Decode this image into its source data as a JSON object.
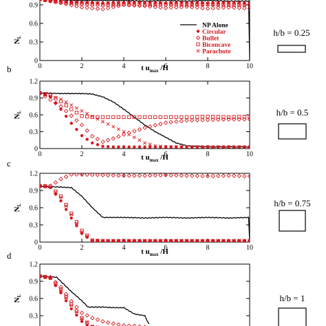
{
  "chart_data": [
    {
      "panel": "a",
      "panel_label": "",
      "type": "line",
      "xlabel": "t u_max /H",
      "ylabel": "N_L",
      "xlim": [
        0,
        10
      ],
      "ylim": [
        0,
        1.2
      ],
      "xticks": [
        "0",
        "2",
        "4",
        "6",
        "8",
        "10"
      ],
      "yticks": [
        "0",
        "0.3",
        "0.6",
        "0.9"
      ],
      "shape_label": "h/b = 0.25",
      "legend_position": "right",
      "series": [
        {
          "name": "NP Alone",
          "style": "line",
          "x": [
            0,
            1,
            2,
            3,
            4,
            5,
            6,
            7,
            8,
            9,
            10
          ],
          "y": [
            0.99,
            0.98,
            0.97,
            0.97,
            0.97,
            0.96,
            0.97,
            0.96,
            0.97,
            0.96,
            0.96
          ]
        },
        {
          "name": "Circular",
          "style": "filled-circle",
          "x": [
            0,
            1,
            2,
            3,
            4,
            5,
            6,
            7,
            8,
            9,
            10
          ],
          "y": [
            0.99,
            0.95,
            0.94,
            0.93,
            0.94,
            0.94,
            0.93,
            0.94,
            0.93,
            0.94,
            0.93
          ]
        },
        {
          "name": "Bullet",
          "style": "open-diamond",
          "x": [
            0,
            1,
            2,
            3,
            4,
            5,
            6,
            7,
            8,
            9,
            10
          ],
          "y": [
            0.99,
            0.93,
            0.86,
            0.83,
            0.9,
            0.88,
            0.85,
            0.87,
            0.84,
            0.86,
            0.84
          ]
        },
        {
          "name": "Biconcave",
          "style": "open-square",
          "x": [
            0,
            1,
            2,
            3,
            4,
            5,
            6,
            7,
            8,
            9,
            10
          ],
          "y": [
            0.99,
            0.94,
            0.92,
            0.9,
            0.91,
            0.9,
            0.91,
            0.9,
            0.91,
            0.9,
            0.9
          ]
        },
        {
          "name": "Parachute",
          "style": "cross",
          "x": [
            0,
            1,
            2,
            3,
            4,
            5,
            6,
            7,
            8,
            9,
            10
          ],
          "y": [
            0.99,
            0.95,
            0.93,
            0.91,
            0.92,
            0.91,
            0.92,
            0.91,
            0.9,
            0.91,
            0.9
          ]
        }
      ]
    },
    {
      "panel": "b",
      "panel_label": "b",
      "type": "line",
      "xlabel": "t u_max /H",
      "ylabel": "N_L",
      "xlim": [
        0,
        10
      ],
      "ylim": [
        0,
        1.2
      ],
      "xticks": [
        "0",
        "2",
        "4",
        "6",
        "8",
        "10"
      ],
      "yticks": [
        "0",
        "0.3",
        "0.6",
        "0.9",
        "1.2"
      ],
      "shape_label": "h/b = 0.5",
      "series": [
        {
          "name": "NP Alone",
          "style": "line",
          "x": [
            0,
            1,
            2,
            2.5,
            3,
            3.5,
            4,
            4.5,
            5,
            5.5,
            6,
            6.5,
            7,
            8,
            9,
            10
          ],
          "y": [
            0.99,
            0.98,
            0.98,
            0.97,
            0.92,
            0.83,
            0.7,
            0.56,
            0.42,
            0.3,
            0.2,
            0.1,
            0.05,
            0.03,
            0.03,
            0.03
          ]
        },
        {
          "name": "Circular",
          "style": "filled-circle",
          "x": [
            0,
            0.5,
            1,
            1.5,
            2,
            2.5,
            3,
            3.5,
            4,
            5,
            6,
            7,
            8,
            9,
            10
          ],
          "y": [
            0.99,
            0.92,
            0.7,
            0.45,
            0.23,
            0.1,
            0.04,
            0.03,
            0.03,
            0.03,
            0.03,
            0.03,
            0.03,
            0.03,
            0.03
          ]
        },
        {
          "name": "Bullet",
          "style": "open-diamond",
          "x": [
            0,
            1,
            2,
            2.5,
            3,
            3.5,
            4,
            5,
            6,
            7,
            8,
            9,
            10
          ],
          "y": [
            0.99,
            0.75,
            0.42,
            0.22,
            0.12,
            0.18,
            0.25,
            0.37,
            0.46,
            0.5,
            0.51,
            0.52,
            0.52
          ]
        },
        {
          "name": "Biconcave",
          "style": "open-square",
          "x": [
            0,
            0.5,
            1,
            1.5,
            2,
            2.5,
            3,
            4,
            5,
            6,
            7,
            8,
            9,
            10
          ],
          "y": [
            0.99,
            0.95,
            0.84,
            0.7,
            0.58,
            0.56,
            0.56,
            0.56,
            0.56,
            0.56,
            0.56,
            0.57,
            0.56,
            0.57
          ]
        },
        {
          "name": "Parachute",
          "style": "cross",
          "x": [
            0,
            1,
            2,
            3,
            4,
            4.5,
            5,
            5.5,
            6,
            7,
            8,
            9,
            10
          ],
          "y": [
            0.99,
            0.88,
            0.67,
            0.48,
            0.3,
            0.2,
            0.1,
            0.05,
            0.03,
            0.03,
            0.03,
            0.03,
            0.03
          ]
        }
      ]
    },
    {
      "panel": "c",
      "panel_label": "c",
      "type": "line",
      "xlabel": "t u_max /H",
      "ylabel": "N_L",
      "xlim": [
        0,
        10
      ],
      "ylim": [
        0,
        1.2
      ],
      "xticks": [
        "0",
        "2",
        "4",
        "6",
        "8",
        "10"
      ],
      "yticks": [
        "0",
        "0.3",
        "0.6",
        "0.9",
        "1.2"
      ],
      "shape_label": "h/b = 0.75",
      "series": [
        {
          "name": "NP Alone",
          "style": "line",
          "x": [
            0,
            1,
            1.5,
            2,
            2.5,
            3,
            3.3,
            4,
            5,
            6,
            7,
            8,
            9,
            10
          ],
          "y": [
            0.97,
            0.96,
            0.95,
            0.8,
            0.6,
            0.43,
            0.43,
            0.43,
            0.42,
            0.43,
            0.42,
            0.43,
            0.42,
            0.43
          ]
        },
        {
          "name": "Circular",
          "style": "filled-circle",
          "x": [
            0,
            0.5,
            1,
            1.5,
            2,
            2.5,
            3,
            4,
            5,
            6,
            7,
            8,
            9,
            10
          ],
          "y": [
            0.98,
            0.95,
            0.72,
            0.42,
            0.15,
            0.02,
            0.02,
            0.02,
            0.02,
            0.02,
            0.02,
            0.02,
            0.02,
            0.02
          ]
        },
        {
          "name": "Bullet",
          "style": "open-diamond",
          "x": [
            0,
            0.5,
            1,
            1.5,
            2,
            3,
            4,
            5,
            6,
            7,
            8,
            9,
            10
          ],
          "y": [
            0.98,
            0.98,
            1.1,
            1.18,
            1.18,
            1.17,
            1.16,
            1.16,
            1.17,
            1.16,
            1.15,
            1.16,
            1.15
          ]
        },
        {
          "name": "Biconcave",
          "style": "open-square",
          "x": [
            0,
            0.5,
            1,
            1.5,
            2,
            2.5,
            3,
            4,
            5,
            6,
            7,
            8,
            9,
            10
          ],
          "y": [
            0.98,
            0.97,
            0.8,
            0.5,
            0.2,
            0.03,
            0.02,
            0.02,
            0.02,
            0.02,
            0.02,
            0.02,
            0.02,
            0.02
          ]
        },
        {
          "name": "Parachute",
          "style": "cross",
          "x": [
            0,
            0.5,
            1,
            1.5,
            2,
            2.5,
            3,
            4,
            5,
            6,
            7,
            8,
            9,
            10
          ],
          "y": [
            0.98,
            0.96,
            0.78,
            0.48,
            0.18,
            0.03,
            0.02,
            0.02,
            0.02,
            0.02,
            0.02,
            0.02,
            0.02,
            0.02
          ]
        }
      ]
    },
    {
      "panel": "d",
      "panel_label": "d",
      "type": "line",
      "xlabel": "",
      "ylabel": "N_L",
      "xlim": [
        0,
        10
      ],
      "ylim": [
        0,
        1.2
      ],
      "xticks": [],
      "yticks": [
        "0.3",
        "0.6",
        "0.9",
        "1.2"
      ],
      "shape_label": "h/b = 1",
      "series": [
        {
          "name": "NP Alone",
          "style": "line",
          "x": [
            0,
            0.8,
            1.5,
            2,
            2.3,
            2.5,
            3,
            3.5,
            4,
            4.5,
            5,
            5.2
          ],
          "y": [
            0.99,
            0.97,
            0.72,
            0.56,
            0.45,
            0.45,
            0.45,
            0.44,
            0.44,
            0.33,
            0.3,
            0.15
          ]
        },
        {
          "name": "Circular",
          "style": "filled-circle",
          "x": [
            0,
            0.5,
            1,
            1.5,
            2,
            2.5
          ],
          "y": [
            0.99,
            0.95,
            0.7,
            0.42,
            0.2,
            0.06
          ]
        },
        {
          "name": "Bullet",
          "style": "open-diamond",
          "x": [
            0,
            0.5,
            1,
            1.5,
            2,
            2.5,
            3,
            3.5,
            4,
            4.5,
            5
          ],
          "y": [
            0.99,
            0.97,
            0.8,
            0.55,
            0.35,
            0.26,
            0.2,
            0.16,
            0.13,
            0.12,
            0.1
          ]
        },
        {
          "name": "Biconcave",
          "style": "open-square",
          "x": [
            0,
            0.5,
            1,
            1.5,
            2,
            2.5
          ],
          "y": [
            0.99,
            0.96,
            0.76,
            0.5,
            0.26,
            0.1
          ]
        },
        {
          "name": "Parachute",
          "style": "cross",
          "x": [
            0,
            0.5,
            1,
            1.5,
            2,
            2.5,
            3
          ],
          "y": [
            0.99,
            0.96,
            0.74,
            0.48,
            0.25,
            0.12,
            0.08
          ]
        }
      ]
    }
  ]
}
